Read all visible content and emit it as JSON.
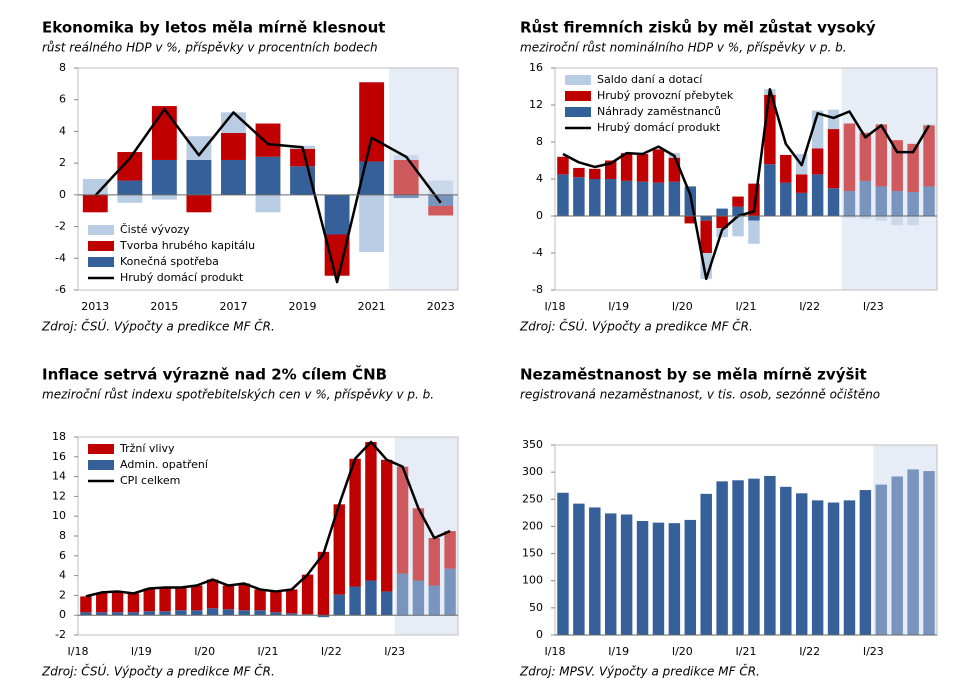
{
  "chart_data": [
    {
      "type": "stacked_bar",
      "title": "Ekonomika by letos měla mírně klesnout",
      "subtitle": "růst reálného HDP v %, příspěvky v procentních bodech",
      "source": "Zdroj: ČSÚ. Výpočty a predikce MF ČR.",
      "categories": [
        "2013",
        null,
        "2015",
        null,
        "2017",
        null,
        "2019",
        null,
        "2021",
        null,
        "2023"
      ],
      "ylim": [
        -6,
        8
      ],
      "yticks": [
        -6,
        -4,
        -2,
        0,
        2,
        4,
        6,
        8
      ],
      "legend": "lower left",
      "forecast_from": 9,
      "series": [
        {
          "name": "Čisté vývozy",
          "color": "#b8cce4",
          "values": [
            1.0,
            -0.5,
            -0.3,
            1.5,
            1.3,
            -1.1,
            0.2,
            0.0,
            -3.6,
            0.3,
            0.9
          ]
        },
        {
          "name": "Tvorba hrubého kapitálu",
          "color": "#c00000",
          "values": [
            -1.1,
            1.8,
            3.4,
            -1.1,
            1.7,
            2.1,
            1.1,
            -2.6,
            5.0,
            2.2,
            -0.6
          ]
        },
        {
          "name": "Konečná spotřeba",
          "color": "#36609a",
          "values": [
            0.0,
            0.9,
            2.2,
            2.2,
            2.2,
            2.4,
            1.8,
            -2.5,
            2.1,
            -0.2,
            -0.7
          ]
        },
        {
          "name": "Hrubý domácí produkt",
          "color": "#000000",
          "type": "line",
          "values": [
            -0.05,
            2.3,
            5.4,
            2.5,
            5.2,
            3.2,
            3.0,
            -5.5,
            3.6,
            2.4,
            -0.5
          ]
        }
      ]
    },
    {
      "type": "stacked_bar",
      "title": "Růst firemních zisků by měl zůstat vysoký",
      "subtitle": "meziroční růst nominálního HDP v %, příspěvky v p. b.",
      "source": "Zdroj: ČSÚ. Výpočty a predikce MF ČR.",
      "categories": [
        "I/18",
        null,
        null,
        null,
        "I/19",
        null,
        null,
        null,
        "I/20",
        null,
        null,
        null,
        "I/21",
        null,
        null,
        null,
        "I/22",
        null,
        null,
        null,
        "I/23",
        null,
        null,
        null
      ],
      "ylim": [
        -8,
        16
      ],
      "yticks": [
        -8,
        -4,
        0,
        4,
        8,
        12,
        16
      ],
      "legend": "upper left",
      "forecast_from": 18,
      "series": [
        {
          "name": "Saldo daní a dotací",
          "color": "#b8cce4",
          "values": [
            0,
            0,
            0,
            0,
            0,
            0,
            0,
            0.5,
            0,
            -2.8,
            -1.0,
            -2.2,
            -2.5,
            0.6,
            0,
            2.2,
            4.1,
            2.1,
            -0.2,
            -0.3,
            -0.5,
            -1.0,
            -1.0,
            0.1
          ]
        },
        {
          "name": "Hrubý provozní přebytek",
          "color": "#c00000",
          "values": [
            1.9,
            1.0,
            1.1,
            2.0,
            3.0,
            3.0,
            3.6,
            2.6,
            -0.8,
            -3.5,
            -1.3,
            1.1,
            3.5,
            7.5,
            3.0,
            2.0,
            2.8,
            6.4,
            7.3,
            5.2,
            6.7,
            5.5,
            5.2,
            6.6
          ]
        },
        {
          "name": "Náhrady zaměstnanců",
          "color": "#36609a",
          "values": [
            4.5,
            4.2,
            4.0,
            4.0,
            3.8,
            3.7,
            3.6,
            3.7,
            3.2,
            -0.5,
            0.8,
            1.0,
            -0.5,
            5.6,
            3.6,
            2.5,
            4.5,
            3.0,
            2.7,
            3.8,
            3.2,
            2.7,
            2.6,
            3.2
          ]
        },
        {
          "name": "Hrubý domácí produkt",
          "color": "#000000",
          "type": "line",
          "values": [
            6.7,
            5.8,
            5.3,
            5.7,
            6.8,
            6.7,
            7.5,
            6.5,
            2.3,
            -6.8,
            -1.5,
            0.0,
            0.5,
            13.7,
            7.8,
            5.5,
            11.1,
            10.6,
            11.3,
            8.5,
            9.8,
            6.9,
            6.9,
            9.8
          ]
        }
      ]
    },
    {
      "type": "stacked_bar",
      "title": "Inflace setrvá výrazně nad 2% cílem ČNB",
      "subtitle": "meziroční růst indexu spotřebitelských cen v %, příspěvky v p. b.",
      "source": "Zdroj: ČSÚ. Výpočty a predikce MF ČR.",
      "categories": [
        "I/18",
        null,
        null,
        null,
        "I/19",
        null,
        null,
        null,
        "I/20",
        null,
        null,
        null,
        "I/21",
        null,
        null,
        null,
        "I/22",
        null,
        null,
        null,
        "I/23",
        null,
        null,
        null
      ],
      "ylim": [
        -2,
        18
      ],
      "yticks": [
        -2,
        0,
        2,
        4,
        6,
        8,
        10,
        12,
        14,
        16,
        18
      ],
      "legend": "upper left",
      "forecast_from": 20,
      "series": [
        {
          "name": "Tržní vlivy",
          "color": "#c00000",
          "values": [
            1.6,
            2.0,
            2.1,
            1.9,
            2.3,
            2.4,
            2.3,
            2.5,
            2.9,
            2.4,
            2.7,
            2.1,
            2.1,
            2.4,
            4.0,
            6.4,
            9.1,
            12.9,
            14.0,
            13.3,
            10.8,
            7.3,
            4.8,
            3.8
          ]
        },
        {
          "name": "Admin. opatření",
          "color": "#36609a",
          "values": [
            0.3,
            0.3,
            0.3,
            0.3,
            0.4,
            0.4,
            0.5,
            0.5,
            0.7,
            0.6,
            0.5,
            0.5,
            0.3,
            0.2,
            0.1,
            -0.2,
            2.1,
            2.9,
            3.5,
            2.4,
            4.2,
            3.5,
            3.0,
            4.7
          ]
        },
        {
          "name": "CPI celkem",
          "color": "#000000",
          "type": "line",
          "values": [
            1.9,
            2.3,
            2.4,
            2.2,
            2.7,
            2.8,
            2.8,
            3.0,
            3.6,
            3.0,
            3.2,
            2.6,
            2.4,
            2.6,
            4.1,
            6.2,
            11.2,
            15.8,
            17.5,
            15.7,
            15.0,
            10.8,
            7.8,
            8.5
          ]
        }
      ]
    },
    {
      "type": "bar",
      "title": "Nezaměstnanost by se měla mírně zvýšit",
      "subtitle": "registrovaná nezaměstnanost, v tis. osob, sezónně očištěno",
      "source": "Zdroj: MPSV. Výpočty a predikce MF ČR.",
      "categories": [
        "I/18",
        null,
        null,
        null,
        "I/19",
        null,
        null,
        null,
        "I/20",
        null,
        null,
        null,
        "I/21",
        null,
        null,
        null,
        "I/22",
        null,
        null,
        null,
        "I/23",
        null,
        null,
        null
      ],
      "ylim": [
        0,
        350
      ],
      "yticks": [
        0,
        50,
        100,
        150,
        200,
        250,
        300,
        350
      ],
      "forecast_from": 20,
      "color": "#36609a",
      "values": [
        262,
        242,
        235,
        224,
        222,
        210,
        207,
        206,
        212,
        260,
        283,
        285,
        288,
        293,
        273,
        261,
        248,
        244,
        248,
        267,
        277,
        292,
        305,
        302
      ]
    }
  ]
}
